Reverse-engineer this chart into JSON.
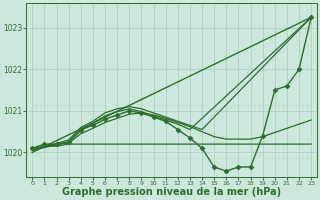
{
  "background_color": "#cce8dc",
  "grid_color": "#aaccbb",
  "line_color": "#2d6e2d",
  "marker_color": "#2d6e2d",
  "xlabel": "Graphe pression niveau de la mer (hPa)",
  "xlabel_fontsize": 7,
  "xlim": [
    -0.5,
    23.5
  ],
  "ylim": [
    1019.4,
    1023.6
  ],
  "yticks": [
    1020,
    1021,
    1022,
    1023
  ],
  "xticks": [
    0,
    1,
    2,
    3,
    4,
    5,
    6,
    7,
    8,
    9,
    10,
    11,
    12,
    13,
    14,
    15,
    16,
    17,
    18,
    19,
    20,
    21,
    22,
    23
  ],
  "series": [
    {
      "x": [
        0,
        1,
        2,
        3,
        4,
        5,
        6,
        7,
        8,
        9,
        10,
        11,
        12,
        13,
        14,
        15,
        16,
        17,
        18,
        19,
        20,
        21,
        22,
        23
      ],
      "y": [
        1020.1,
        1020.2,
        1020.2,
        1020.25,
        1020.55,
        1020.65,
        1020.8,
        1020.9,
        1021.0,
        1020.95,
        1020.85,
        1020.75,
        1020.55,
        1020.35,
        1020.1,
        1019.65,
        1019.55,
        1019.65,
        1019.65,
        1020.4,
        1021.5,
        1021.6,
        1022.0,
        1023.25
      ],
      "marker": "D",
      "markersize": 2.5,
      "linewidth": 1.0
    },
    {
      "x": [
        0,
        1,
        2,
        3,
        4,
        5,
        6,
        7,
        8,
        9,
        10,
        11,
        12,
        13,
        14,
        15,
        16,
        17,
        18,
        19,
        20,
        21,
        22,
        23
      ],
      "y": [
        1020.1,
        1020.15,
        1020.15,
        1020.2,
        1020.2,
        1020.2,
        1020.2,
        1020.2,
        1020.2,
        1020.2,
        1020.2,
        1020.2,
        1020.2,
        1020.2,
        1020.2,
        1020.2,
        1020.2,
        1020.2,
        1020.2,
        1020.2,
        1020.2,
        1020.2,
        1020.2,
        1020.2
      ],
      "marker": null,
      "markersize": 0,
      "linewidth": 0.9
    },
    {
      "x": [
        0,
        23
      ],
      "y": [
        1020.0,
        1023.25
      ],
      "marker": null,
      "markersize": 0,
      "linewidth": 1.0
    },
    {
      "x": [
        0,
        3,
        4,
        5,
        6,
        7,
        8,
        9,
        10,
        11,
        12,
        13,
        14,
        23
      ],
      "y": [
        1020.05,
        1020.3,
        1020.6,
        1020.75,
        1020.95,
        1021.05,
        1021.1,
        1021.05,
        1020.95,
        1020.85,
        1020.75,
        1020.65,
        1020.55,
        1023.25
      ],
      "marker": null,
      "markersize": 0,
      "linewidth": 0.9
    },
    {
      "x": [
        0,
        3,
        4,
        5,
        6,
        7,
        8,
        9,
        10,
        11,
        12,
        13,
        23
      ],
      "y": [
        1020.05,
        1020.25,
        1020.52,
        1020.7,
        1020.88,
        1020.98,
        1021.05,
        1020.98,
        1020.88,
        1020.78,
        1020.68,
        1020.55,
        1023.25
      ],
      "marker": null,
      "markersize": 0,
      "linewidth": 0.9
    },
    {
      "x": [
        0,
        1,
        2,
        3,
        4,
        5,
        6,
        7,
        8,
        9,
        10,
        11,
        12,
        13,
        14,
        15,
        16,
        17,
        18,
        19,
        20,
        21,
        22,
        23
      ],
      "y": [
        1020.05,
        1020.15,
        1020.2,
        1020.22,
        1020.45,
        1020.58,
        1020.72,
        1020.82,
        1020.92,
        1020.95,
        1020.9,
        1020.82,
        1020.72,
        1020.62,
        1020.5,
        1020.38,
        1020.32,
        1020.32,
        1020.32,
        1020.38,
        1020.48,
        1020.58,
        1020.68,
        1020.78
      ],
      "marker": null,
      "markersize": 0,
      "linewidth": 0.9
    }
  ]
}
